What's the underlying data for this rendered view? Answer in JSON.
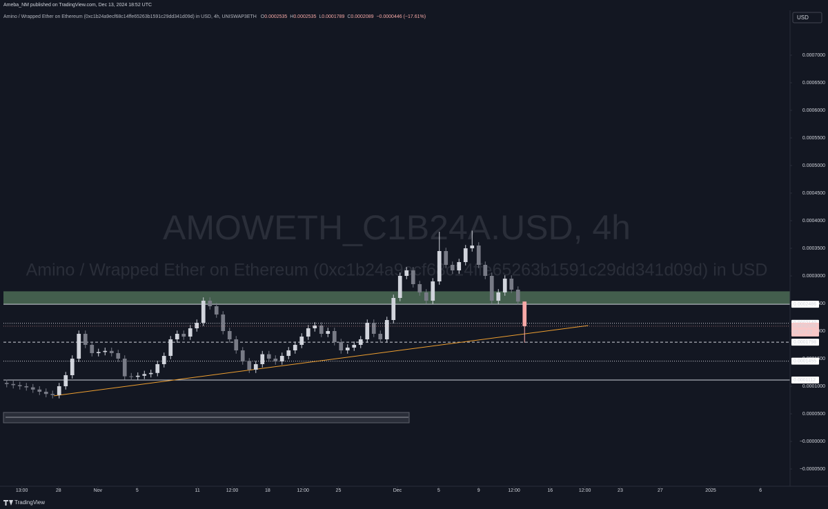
{
  "header": {
    "publisher": "Ameba_NM published on TradingView.com, Dec 13, 2024 18:52 UTC",
    "symbol": "Amino / Wrapped Ether on Ethereum (0xc1b24a9ecf68c14ffe65263b1591c29dd341d09d) in USD, 4h, UNISWAP3ETH",
    "ohlc_letters": [
      "O",
      "H",
      "L",
      "C"
    ],
    "change": "−0.0000446 (−17.61%)",
    "currency": "USD",
    "footer_brand": "TradingView"
  },
  "chart_data": {
    "type": "candlestick",
    "watermark_title": "AMOWETH_C1B24A.USD, 4h",
    "watermark_subtitle": "Amino / Wrapped Ether on Ethereum (0xc1b24a9ecf68c14ffe65263b1591c29dd341d09d) in USD",
    "up_color": "#d1d4dc",
    "down_color": "#787b86",
    "last_color": "#f7a9a7",
    "open": [
      0.000106,
      0.000104,
      0.000102,
      0.0001,
      9.8e-05,
      9.4e-05,
      9e-05,
      8.6e-05,
      8.4e-05,
      0.0001,
      0.00012,
      0.00015,
      0.000195,
      0.000175,
      0.00016,
      0.000162,
      0.000164,
      0.00016,
      0.00015,
      0.000118,
      0.000117,
      0.000119,
      0.000122,
      0.000124,
      0.00014,
      0.000155,
      0.000185,
      0.000195,
      0.00019,
      0.000205,
      0.000215,
      0.000255,
      0.000245,
      0.00023,
      0.0002,
      0.000185,
      0.000165,
      0.000145,
      0.00013,
      0.00014,
      0.000158,
      0.00015,
      0.000145,
      0.000155,
      0.000165,
      0.000175,
      0.00019,
      0.000205,
      0.00021,
      0.000195,
      0.0002,
      0.00018,
      0.000165,
      0.00017,
      0.000175,
      0.000185,
      0.000215,
      0.000195,
      0.000185,
      0.00022,
      0.00026,
      0.0003,
      0.00031,
      0.000285,
      0.00027,
      0.000255,
      0.00029,
      0.000345,
      0.00032,
      0.00031,
      0.000325,
      0.00035,
      0.000355,
      0.00032,
      0.0003,
      0.000255,
      0.00027,
      0.000295,
      0.000275,
      0.0002535
    ],
    "high": [
      0.000112,
      0.00011,
      0.000108,
      0.000106,
      0.000104,
      0.0001,
      9.6e-05,
      9.2e-05,
      0.000106,
      0.000126,
      0.000156,
      0.000201,
      0.000201,
      0.000181,
      0.000168,
      0.00017,
      0.00017,
      0.000166,
      0.000156,
      0.000124,
      0.000125,
      0.000128,
      0.00013,
      0.000146,
      0.000161,
      0.000191,
      0.000201,
      0.000201,
      0.000211,
      0.000221,
      0.000261,
      0.000261,
      0.000251,
      0.000236,
      0.000206,
      0.000191,
      0.000171,
      0.000151,
      0.000146,
      0.000164,
      0.000164,
      0.000156,
      0.000161,
      0.000171,
      0.000181,
      0.000196,
      0.000211,
      0.000216,
      0.000216,
      0.000206,
      0.000206,
      0.000186,
      0.000176,
      0.000181,
      0.000191,
      0.000221,
      0.000221,
      0.000201,
      0.000226,
      0.000266,
      0.000306,
      0.000316,
      0.000316,
      0.000291,
      0.000276,
      0.000296,
      0.00038,
      0.000351,
      0.000326,
      0.000331,
      0.000356,
      0.000382,
      0.000361,
      0.000326,
      0.000306,
      0.000276,
      0.000301,
      0.000301,
      0.000281,
      0.0002535
    ],
    "low": [
      9.8e-05,
      9.6e-05,
      9.4e-05,
      9.2e-05,
      8.8e-05,
      8.4e-05,
      8e-05,
      7.8e-05,
      7.8e-05,
      9.4e-05,
      0.000114,
      0.000144,
      0.000169,
      0.000154,
      0.000154,
      0.000156,
      0.000154,
      0.000144,
      0.000112,
      0.000111,
      0.000111,
      0.000113,
      0.000116,
      0.000118,
      0.000134,
      0.000149,
      0.000179,
      0.000184,
      0.000184,
      0.000199,
      0.000209,
      0.000239,
      0.000224,
      0.000194,
      0.000179,
      0.000159,
      0.000139,
      0.000124,
      0.000124,
      0.000134,
      0.000144,
      0.000139,
      0.000139,
      0.000149,
      0.000159,
      0.000169,
      0.000184,
      0.000199,
      0.000189,
      0.000189,
      0.000174,
      0.000159,
      0.000159,
      0.000164,
      0.000169,
      0.000179,
      0.000189,
      0.000179,
      0.000179,
      0.000214,
      0.000254,
      0.000294,
      0.000279,
      0.000264,
      0.000249,
      0.000249,
      0.000284,
      0.000314,
      0.000304,
      0.000304,
      0.000319,
      0.000344,
      0.000314,
      0.000294,
      0.000249,
      0.000249,
      0.000264,
      0.000269,
      0.0002475,
      0.0001789
    ],
    "close": [
      0.000104,
      0.000102,
      0.0001,
      9.8e-05,
      9.4e-05,
      9e-05,
      8.6e-05,
      8.4e-05,
      0.0001,
      0.00012,
      0.00015,
      0.000195,
      0.000175,
      0.00016,
      0.000162,
      0.000164,
      0.00016,
      0.00015,
      0.000118,
      0.000117,
      0.000119,
      0.000122,
      0.000124,
      0.00014,
      0.000155,
      0.000185,
      0.000195,
      0.00019,
      0.000205,
      0.000215,
      0.000255,
      0.000245,
      0.00023,
      0.0002,
      0.000185,
      0.000165,
      0.000145,
      0.00013,
      0.00014,
      0.000158,
      0.00015,
      0.000145,
      0.000155,
      0.000165,
      0.000175,
      0.00019,
      0.000205,
      0.00021,
      0.000195,
      0.0002,
      0.00018,
      0.000165,
      0.00017,
      0.000175,
      0.000185,
      0.000215,
      0.000195,
      0.000185,
      0.00022,
      0.00026,
      0.0003,
      0.00031,
      0.000285,
      0.00027,
      0.000255,
      0.00029,
      0.000345,
      0.00032,
      0.00031,
      0.000325,
      0.00035,
      0.000355,
      0.00032,
      0.0003,
      0.000255,
      0.00027,
      0.000295,
      0.000275,
      0.0002535,
      0.0002089
    ],
    "countdown": "01:07:22",
    "xlim": [
      0,
      120
    ],
    "xticks": [
      {
        "value": 2.8,
        "label": "13:00"
      },
      {
        "value": 8.4,
        "label": "28"
      },
      {
        "value": 14.4,
        "label": "Nov"
      },
      {
        "value": 20.4,
        "label": "5"
      },
      {
        "value": 29.6,
        "label": "11"
      },
      {
        "value": 34.9,
        "label": "12:00"
      },
      {
        "value": 40.3,
        "label": "18"
      },
      {
        "value": 45.7,
        "label": "12:00"
      },
      {
        "value": 51.1,
        "label": "25"
      },
      {
        "value": 60.1,
        "label": "Dec"
      },
      {
        "value": 66.4,
        "label": "5"
      },
      {
        "value": 72.5,
        "label": "9"
      },
      {
        "value": 77.9,
        "label": "12:00"
      },
      {
        "value": 83.4,
        "label": "16"
      },
      {
        "value": 88.7,
        "label": "12:00"
      },
      {
        "value": 94.1,
        "label": "23"
      },
      {
        "value": 100.2,
        "label": "27"
      },
      {
        "value": 107.9,
        "label": "2025"
      },
      {
        "value": 115.5,
        "label": "6"
      }
    ],
    "ylim": [
      -7.5e-05,
      0.00078125
    ],
    "yticks": [
      {
        "value": -5e-05,
        "label": "−0.0000500"
      },
      {
        "value": 0,
        "label": "−0.0000000"
      },
      {
        "value": 5e-05,
        "label": "0.0000500"
      },
      {
        "value": 0.0001,
        "label": "0.0001000"
      },
      {
        "value": 0.00015,
        "label": "0.0001500"
      },
      {
        "value": 0.0002,
        "label": "0.0002000"
      },
      {
        "value": 0.00025,
        "label": "0.0002500"
      },
      {
        "value": 0.0003,
        "label": "0.0003000"
      },
      {
        "value": 0.00035,
        "label": "0.0003500"
      },
      {
        "value": 0.0004,
        "label": "0.0004000"
      },
      {
        "value": 0.00045,
        "label": "0.0004500"
      },
      {
        "value": 0.0005,
        "label": "0.0005000"
      },
      {
        "value": 0.00055,
        "label": "0.0005500"
      },
      {
        "value": 0.0006,
        "label": "0.0006000"
      },
      {
        "value": 0.00065,
        "label": "0.0006500"
      },
      {
        "value": 0.0007,
        "label": "0.0007000"
      }
    ],
    "zone": {
      "from": 0.0002486,
      "to": 0.000272,
      "color": "#4c6b55"
    },
    "levels": [
      {
        "value": 0.0002486,
        "label": "0.0002486",
        "style": "solid"
      },
      {
        "value": 0.000214,
        "label": "0.0002140",
        "style": "dotted"
      },
      {
        "value": 0.0001798,
        "label": "0.0001798",
        "style": "dashed"
      },
      {
        "value": 0.0001455,
        "label": "0.0001455",
        "style": "dotted"
      },
      {
        "value": 0.0001112,
        "label": "0.0001112",
        "style": "solid"
      }
    ],
    "trendline": {
      "x": [
        7.7,
        89.2
      ],
      "y": [
        8.26e-05,
        0.00021
      ],
      "color": "#f0a030"
    }
  }
}
